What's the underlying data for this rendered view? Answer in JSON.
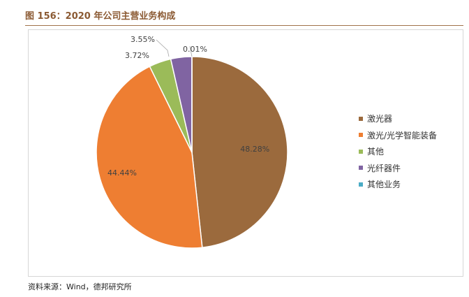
{
  "page": {
    "title": "图 156：2020 年公司主营业务构成",
    "source": "资料来源：Wind，德邦研究所"
  },
  "chart_data": {
    "type": "pie",
    "title": "",
    "categories": [
      "激光器",
      "激光/光学智能装备",
      "其他",
      "光纤器件",
      "其他业务"
    ],
    "values": [
      48.28,
      44.44,
      3.72,
      3.55,
      0.01
    ],
    "labels": [
      "48.28%",
      "44.44%",
      "3.72%",
      "3.55%",
      "0.01%"
    ],
    "colors": [
      "#9b6a3d",
      "#ee7e32",
      "#9bbb59",
      "#8064a2",
      "#4bacc6"
    ],
    "legend_position": "right"
  }
}
